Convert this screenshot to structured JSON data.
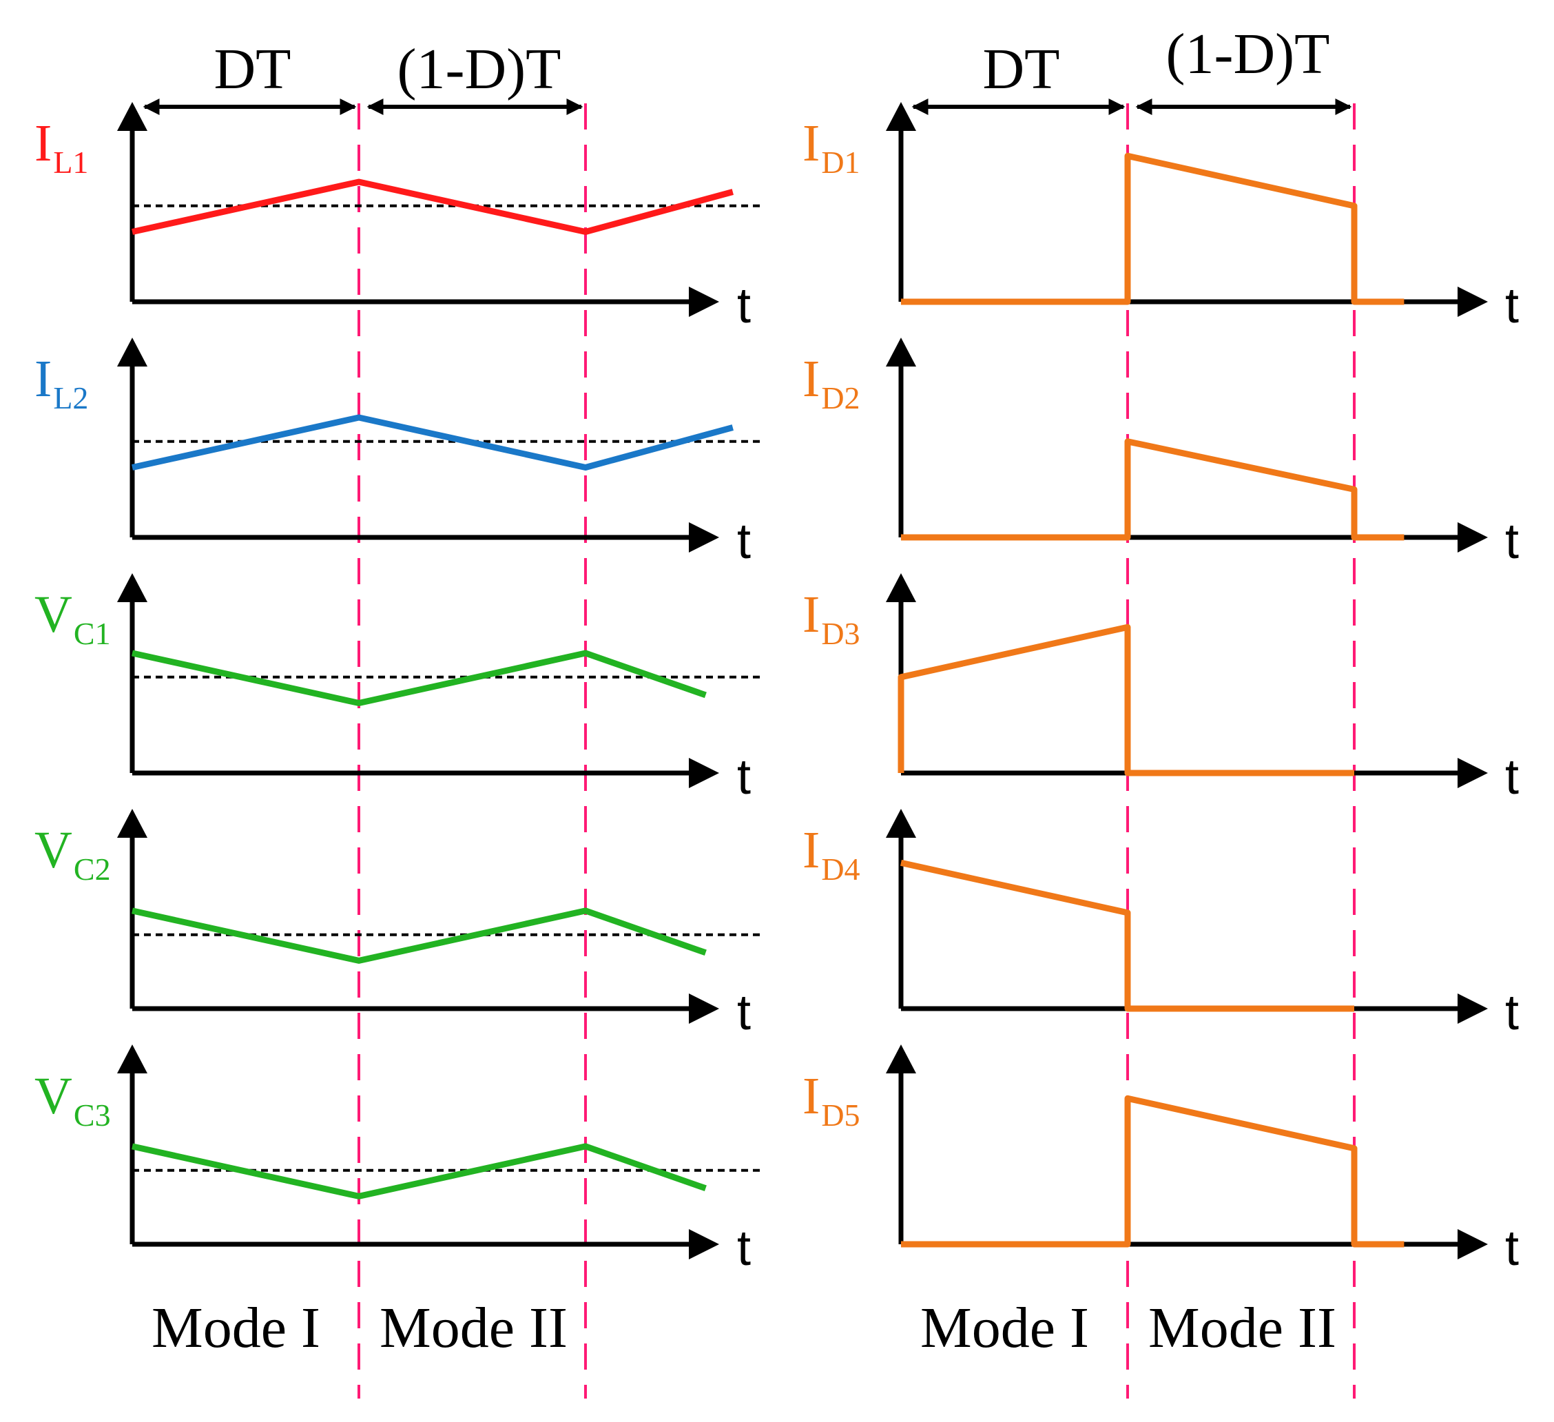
{
  "colors": {
    "red": "#ff1a1a",
    "blue": "#1a78c8",
    "green": "#22b322",
    "orange": "#f07818",
    "divider": "#ff1a75",
    "axis": "#000000"
  },
  "intervals": {
    "first": "DT",
    "second": "(1-D)T"
  },
  "modes": {
    "first": "Mode I",
    "second": "Mode II"
  },
  "time_axis_label": "t",
  "waveform_scale": "relative level, 0 = time axis, 1 = top of vertical axis; time in switching periods",
  "left_column": [
    {
      "name": "I",
      "sub": "L1",
      "color": "red",
      "points": [
        [
          0,
          0.35
        ],
        [
          1,
          0.6
        ],
        [
          2,
          0.35
        ],
        [
          2.65,
          0.55
        ]
      ],
      "avg": 0.48
    },
    {
      "name": "I",
      "sub": "L2",
      "color": "blue",
      "points": [
        [
          0,
          0.35
        ],
        [
          1,
          0.6
        ],
        [
          2,
          0.35
        ],
        [
          2.65,
          0.55
        ]
      ],
      "avg": 0.48
    },
    {
      "name": "V",
      "sub": "C1",
      "color": "green",
      "points": [
        [
          0,
          0.6
        ],
        [
          1,
          0.35
        ],
        [
          2,
          0.6
        ],
        [
          2.53,
          0.39
        ]
      ],
      "avg": 0.48
    },
    {
      "name": "V",
      "sub": "C2",
      "color": "green",
      "points": [
        [
          0,
          0.49
        ],
        [
          1,
          0.24
        ],
        [
          2,
          0.49
        ],
        [
          2.53,
          0.28
        ]
      ],
      "avg": 0.37
    },
    {
      "name": "V",
      "sub": "C3",
      "color": "green",
      "points": [
        [
          0,
          0.49
        ],
        [
          1,
          0.24
        ],
        [
          2,
          0.49
        ],
        [
          2.53,
          0.28
        ]
      ],
      "avg": 0.37
    }
  ],
  "right_column": [
    {
      "name": "I",
      "sub": "D1",
      "color": "orange",
      "points": [
        [
          0,
          0
        ],
        [
          1,
          0
        ],
        [
          1,
          0.73
        ],
        [
          2,
          0.48
        ],
        [
          2,
          0
        ],
        [
          2.22,
          0
        ]
      ]
    },
    {
      "name": "I",
      "sub": "D2",
      "color": "orange",
      "points": [
        [
          0,
          0
        ],
        [
          1,
          0
        ],
        [
          1,
          0.48
        ],
        [
          2,
          0.24
        ],
        [
          2,
          0
        ],
        [
          2.22,
          0
        ]
      ]
    },
    {
      "name": "I",
      "sub": "D3",
      "color": "orange",
      "points": [
        [
          0,
          0
        ],
        [
          0,
          0.48
        ],
        [
          1,
          0.73
        ],
        [
          1,
          0
        ],
        [
          2,
          0
        ]
      ]
    },
    {
      "name": "I",
      "sub": "D4",
      "color": "orange",
      "points": [
        [
          0,
          0.73
        ],
        [
          1,
          0.48
        ],
        [
          1,
          0
        ],
        [
          2,
          0
        ]
      ]
    },
    {
      "name": "I",
      "sub": "D5",
      "color": "orange",
      "points": [
        [
          0,
          0
        ],
        [
          1,
          0
        ],
        [
          1,
          0.73
        ],
        [
          2,
          0.48
        ],
        [
          2,
          0
        ],
        [
          2.22,
          0
        ]
      ]
    }
  ]
}
